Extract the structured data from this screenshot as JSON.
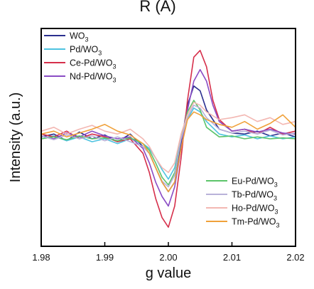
{
  "header": {
    "cropped_title": "R (A)"
  },
  "chart_data": {
    "type": "line",
    "title": "",
    "xlabel": "g value",
    "ylabel": "Intensity (a.u.)",
    "xlim": [
      1.98,
      2.02
    ],
    "xticks": [
      "1.98",
      "1.99",
      "2.00",
      "2.01",
      "2.02"
    ],
    "ylim": [
      -1,
      1
    ],
    "yticks_shown": false,
    "grid": false,
    "legend_placement": [
      "top-left",
      "bottom-right"
    ],
    "series": [
      {
        "name": "WO3",
        "label_main": "WO",
        "label_sub": "3",
        "label_tail": "",
        "color": "#2b2f8f",
        "x": [
          1.98,
          1.982,
          1.984,
          1.986,
          1.988,
          1.99,
          1.992,
          1.994,
          1.996,
          1.997,
          1.998,
          1.999,
          2.0,
          2.001,
          2.002,
          2.003,
          2.004,
          2.005,
          2.006,
          2.008,
          2.01,
          2.012,
          2.014,
          2.016,
          2.018,
          2.02
        ],
        "y": [
          0.02,
          0.05,
          -0.02,
          0.07,
          0.0,
          0.04,
          -0.03,
          0.05,
          -0.08,
          -0.15,
          -0.3,
          -0.45,
          -0.55,
          -0.45,
          -0.05,
          0.35,
          0.55,
          0.5,
          0.3,
          0.1,
          0.06,
          0.05,
          0.08,
          0.03,
          0.06,
          0.02
        ]
      },
      {
        "name": "Pd/WO3",
        "label_main": "Pd/WO",
        "label_sub": "3",
        "label_tail": "",
        "color": "#4ec3e0",
        "x": [
          1.98,
          1.982,
          1.984,
          1.986,
          1.988,
          1.99,
          1.992,
          1.994,
          1.996,
          1.997,
          1.998,
          1.999,
          2.0,
          2.001,
          2.002,
          2.003,
          2.004,
          2.005,
          2.006,
          2.008,
          2.01,
          2.012,
          2.014,
          2.016,
          2.018,
          2.02
        ],
        "y": [
          0.0,
          0.03,
          -0.02,
          0.02,
          -0.03,
          0.0,
          -0.05,
          0.0,
          -0.05,
          -0.1,
          -0.2,
          -0.32,
          -0.42,
          -0.3,
          0.0,
          0.2,
          0.32,
          0.28,
          0.18,
          0.05,
          0.02,
          0.04,
          0.0,
          0.03,
          0.0,
          0.02
        ]
      },
      {
        "name": "Ce-Pd/WO3",
        "label_main": "Ce-Pd/WO",
        "label_sub": "3",
        "label_tail": "",
        "color": "#d62f4b",
        "x": [
          1.98,
          1.982,
          1.984,
          1.986,
          1.988,
          1.99,
          1.992,
          1.994,
          1.996,
          1.997,
          1.998,
          1.999,
          2.0,
          2.001,
          2.002,
          2.003,
          2.004,
          2.005,
          2.006,
          2.007,
          2.008,
          2.01,
          2.012,
          2.014,
          2.016,
          2.018,
          2.02
        ],
        "y": [
          0.05,
          0.02,
          0.08,
          0.0,
          0.05,
          0.02,
          -0.03,
          0.0,
          -0.15,
          -0.35,
          -0.62,
          -0.82,
          -0.92,
          -0.7,
          -0.2,
          0.4,
          0.85,
          0.92,
          0.75,
          0.4,
          0.2,
          0.08,
          0.1,
          0.05,
          0.12,
          0.05,
          0.08
        ]
      },
      {
        "name": "Nd-Pd/WO3",
        "label_main": "Nd-Pd/WO",
        "label_sub": "3",
        "label_tail": "",
        "color": "#8a4cc4",
        "x": [
          1.98,
          1.982,
          1.984,
          1.986,
          1.988,
          1.99,
          1.992,
          1.994,
          1.996,
          1.997,
          1.998,
          1.999,
          2.0,
          2.001,
          2.002,
          2.003,
          2.004,
          2.005,
          2.006,
          2.007,
          2.008,
          2.01,
          2.012,
          2.014,
          2.016,
          2.018,
          2.02
        ],
        "y": [
          0.03,
          0.0,
          0.06,
          0.02,
          0.08,
          0.03,
          0.0,
          0.02,
          -0.1,
          -0.25,
          -0.45,
          -0.6,
          -0.7,
          -0.5,
          -0.1,
          0.3,
          0.6,
          0.72,
          0.6,
          0.35,
          0.18,
          0.08,
          0.1,
          0.07,
          0.1,
          0.06,
          0.05
        ]
      },
      {
        "name": "Eu-Pd/WO3",
        "label_main": "Eu-Pd/WO",
        "label_sub": "3",
        "label_tail": "",
        "color": "#5cc46a",
        "x": [
          1.98,
          1.982,
          1.984,
          1.986,
          1.988,
          1.99,
          1.992,
          1.994,
          1.996,
          1.997,
          1.998,
          1.999,
          2.0,
          2.001,
          2.002,
          2.003,
          2.004,
          2.005,
          2.006,
          2.008,
          2.01,
          2.012,
          2.014,
          2.016,
          2.018,
          2.02
        ],
        "y": [
          0.0,
          0.02,
          -0.01,
          0.03,
          0.0,
          0.01,
          -0.02,
          0.01,
          -0.05,
          -0.12,
          -0.25,
          -0.4,
          -0.48,
          -0.35,
          0.0,
          0.28,
          0.4,
          0.3,
          0.12,
          0.02,
          0.03,
          0.0,
          0.02,
          0.0,
          0.01,
          0.0
        ]
      },
      {
        "name": "Tb-Pd/WO3",
        "label_main": "Tb-Pd/WO",
        "label_sub": "3",
        "label_tail": "",
        "color": "#b9b2d9",
        "x": [
          1.98,
          1.982,
          1.984,
          1.986,
          1.988,
          1.99,
          1.992,
          1.994,
          1.996,
          1.997,
          1.998,
          1.999,
          2.0,
          2.001,
          2.002,
          2.003,
          2.004,
          2.005,
          2.006,
          2.008,
          2.01,
          2.012,
          2.014,
          2.016,
          2.018,
          2.02
        ],
        "y": [
          0.03,
          -0.01,
          0.04,
          0.0,
          0.03,
          -0.02,
          0.02,
          -0.03,
          -0.08,
          -0.15,
          -0.3,
          -0.44,
          -0.5,
          -0.38,
          0.0,
          0.22,
          0.35,
          0.32,
          0.22,
          0.1,
          0.06,
          0.08,
          0.05,
          0.09,
          0.04,
          0.06
        ]
      },
      {
        "name": "Ho-Pd/WO3",
        "label_main": "Ho-Pd/WO",
        "label_sub": "3",
        "label_tail": "",
        "color": "#f3b7b2",
        "x": [
          1.98,
          1.982,
          1.984,
          1.986,
          1.988,
          1.99,
          1.992,
          1.994,
          1.996,
          1.997,
          1.998,
          1.999,
          2.0,
          2.001,
          2.002,
          2.003,
          2.004,
          2.005,
          2.006,
          2.008,
          2.01,
          2.012,
          2.014,
          2.016,
          2.018,
          2.02
        ],
        "y": [
          0.08,
          0.12,
          0.05,
          0.1,
          0.14,
          0.08,
          0.05,
          0.1,
          0.0,
          -0.08,
          -0.2,
          -0.3,
          -0.35,
          -0.25,
          0.05,
          0.25,
          0.38,
          0.35,
          0.28,
          0.2,
          0.22,
          0.25,
          0.18,
          0.22,
          0.15,
          0.18
        ]
      },
      {
        "name": "Tm-Pd/WO3",
        "label_main": "Tm-Pd/WO",
        "label_sub": "3",
        "label_tail": "",
        "color": "#f0a13a",
        "x": [
          1.98,
          1.982,
          1.984,
          1.986,
          1.988,
          1.99,
          1.992,
          1.994,
          1.996,
          1.997,
          1.998,
          1.999,
          2.0,
          2.001,
          2.002,
          2.003,
          2.004,
          2.005,
          2.006,
          2.008,
          2.01,
          2.012,
          2.014,
          2.016,
          2.018,
          2.02
        ],
        "y": [
          0.05,
          0.08,
          0.02,
          0.06,
          0.1,
          0.15,
          0.08,
          0.04,
          -0.05,
          -0.15,
          -0.3,
          -0.45,
          -0.55,
          -0.45,
          -0.1,
          0.2,
          0.28,
          0.25,
          0.2,
          0.15,
          0.12,
          0.18,
          0.1,
          0.16,
          0.25,
          0.12
        ]
      }
    ]
  }
}
